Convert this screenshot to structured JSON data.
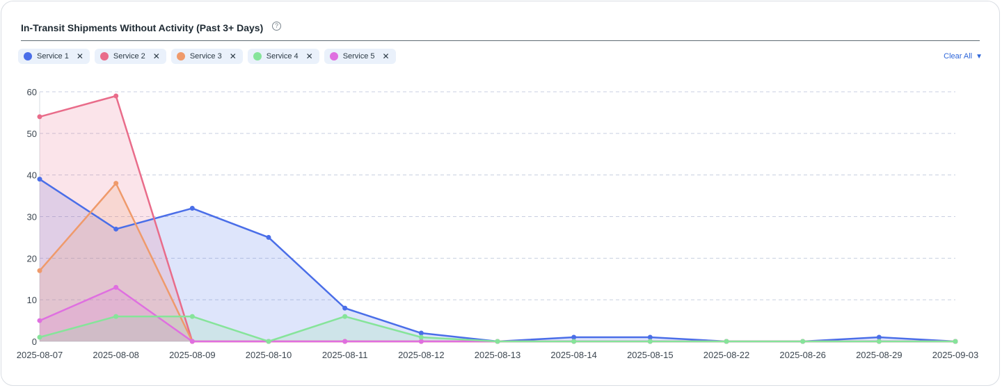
{
  "header": {
    "title": "In-Transit Shipments Without Activity (Past 3+ Days)",
    "help_icon": "question-circle-icon"
  },
  "legend": {
    "items": [
      {
        "label": "Service 1",
        "color": "#4a6ee8"
      },
      {
        "label": "Service 2",
        "color": "#e96c8a"
      },
      {
        "label": "Service 3",
        "color": "#ef9a6b"
      },
      {
        "label": "Service 4",
        "color": "#86e49a"
      },
      {
        "label": "Service 5",
        "color": "#df6fe0"
      }
    ],
    "close_glyph": "✕",
    "clear_all_label": "Clear All",
    "clear_all_icon": "caret-down-icon"
  },
  "chart_data": {
    "type": "area",
    "categories": [
      "2025-08-07",
      "2025-08-08",
      "2025-08-09",
      "2025-08-10",
      "2025-08-11",
      "2025-08-12",
      "2025-08-13",
      "2025-08-14",
      "2025-08-15",
      "2025-08-22",
      "2025-08-26",
      "2025-08-29",
      "2025-09-03"
    ],
    "ylim": [
      0,
      60
    ],
    "yticks": [
      0,
      10,
      20,
      30,
      40,
      50,
      60
    ],
    "grid": true,
    "series": [
      {
        "name": "Service 1",
        "color": "#4a6ee8",
        "values": [
          39,
          27,
          32,
          25,
          8,
          2,
          0,
          1,
          1,
          0,
          0,
          1,
          0
        ]
      },
      {
        "name": "Service 2",
        "color": "#e96c8a",
        "values": [
          54,
          59,
          0,
          0,
          0,
          0,
          0,
          0,
          0,
          0,
          0,
          0,
          0
        ]
      },
      {
        "name": "Service 3",
        "color": "#ef9a6b",
        "values": [
          17,
          38,
          0,
          0,
          0,
          0,
          0,
          0,
          0,
          0,
          0,
          0,
          0
        ]
      },
      {
        "name": "Service 4",
        "color": "#86e49a",
        "values": [
          1,
          6,
          6,
          0,
          6,
          1,
          0,
          0,
          0,
          0,
          0,
          0,
          0
        ]
      },
      {
        "name": "Service 5",
        "color": "#df6fe0",
        "values": [
          5,
          13,
          0,
          0,
          0,
          0,
          0,
          0,
          0,
          0,
          0,
          0,
          0
        ]
      }
    ]
  }
}
